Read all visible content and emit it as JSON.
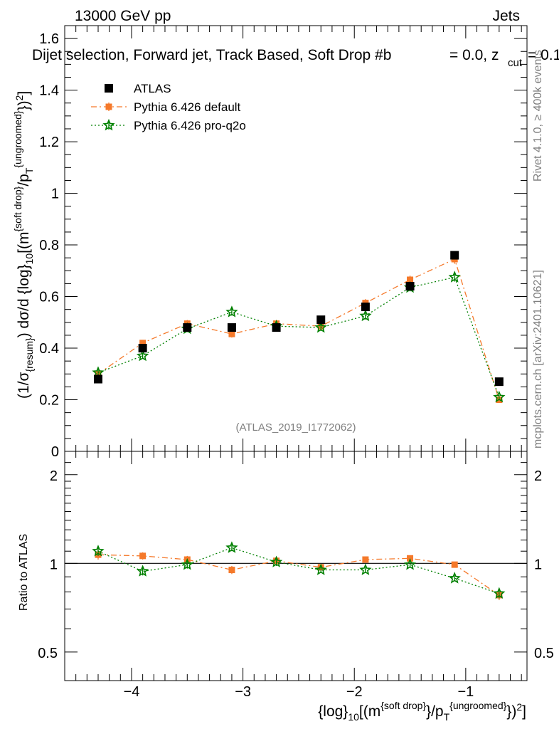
{
  "header": {
    "left": "13000 GeV pp",
    "right": "Jets",
    "title": "Dijet selection, Forward jet, Track Based, Soft Drop #b",
    "title_tail": "= 0.0, z",
    "title_cut": "cut",
    "title_end": "= 0.1"
  },
  "side_text": {
    "rivet": "Rivet 4.1.0, ≥ 400k events",
    "mcplots": "mcplots.cern.ch [arXiv:2401.10621]"
  },
  "watermark": "(ATLAS_2019_I1772062)",
  "legend": [
    {
      "label": "ATLAS",
      "color": "#000000",
      "marker": "square",
      "line": "none"
    },
    {
      "label": "Pythia 6.426 default",
      "color": "#f5792a",
      "marker": "square-small",
      "line": "dashdot"
    },
    {
      "label": "Pythia 6.426 pro-q2o",
      "color": "#008000",
      "marker": "star",
      "line": "dotted"
    }
  ],
  "axis_text": {
    "ylabel_main": "(1/σ{resum}) dσ/d {log}10[(m{soft drop}/pT{ungroomed})2]",
    "ylabel_ratio": "Ratio to ATLAS",
    "xlabel": "{log}10[(m{soft drop}/pT{ungroomed})2]",
    "main_yticks": [
      "0",
      "0.2",
      "0.4",
      "0.6",
      "0.8",
      "1",
      "1.2",
      "1.4",
      "1.6"
    ],
    "ratio_yticks": [
      "0.5",
      "1",
      "2"
    ],
    "xticks": [
      "−4",
      "−3",
      "−2",
      "−1"
    ]
  },
  "chart_data": {
    "type": "scatter",
    "title": "Dijet selection, Forward jet, Track Based, Soft Drop β = 0.0, z_cut = 0.1",
    "x": [
      -4.3,
      -3.9,
      -3.5,
      -3.1,
      -2.7,
      -2.3,
      -1.9,
      -1.5,
      -1.1,
      -0.7
    ],
    "xlim": [
      -4.6,
      -0.45
    ],
    "ylim": [
      0,
      1.65
    ],
    "ratio_ylim": [
      0.4,
      2.4
    ],
    "ratio_scale": "log",
    "series": [
      {
        "name": "ATLAS",
        "values": [
          0.28,
          0.4,
          0.48,
          0.48,
          0.48,
          0.51,
          0.56,
          0.64,
          0.76,
          0.27
        ],
        "errors": [
          0.005,
          0.005,
          0.005,
          0.005,
          0.005,
          0.005,
          0.005,
          0.005,
          0.005,
          0.005
        ],
        "ratio": [
          1,
          1,
          1,
          1,
          1,
          1,
          1,
          1,
          1,
          1
        ]
      },
      {
        "name": "Pythia 6.426 default",
        "values": [
          0.3,
          0.42,
          0.495,
          0.455,
          0.495,
          0.485,
          0.575,
          0.665,
          0.745,
          0.2
        ],
        "errors": [
          0.012,
          0.012,
          0.014,
          0.014,
          0.014,
          0.013,
          0.015,
          0.016,
          0.018,
          0.008
        ],
        "ratio": [
          1.07,
          1.06,
          1.03,
          0.95,
          1.02,
          0.97,
          1.03,
          1.04,
          0.99,
          0.78
        ],
        "ratio_errors": [
          0.04,
          0.03,
          0.03,
          0.03,
          0.03,
          0.02,
          0.02,
          0.02,
          0.02,
          0.03
        ]
      },
      {
        "name": "Pythia 6.426 pro-q2o",
        "values": [
          0.305,
          0.37,
          0.475,
          0.54,
          0.485,
          0.48,
          0.525,
          0.635,
          0.675,
          0.21
        ],
        "errors": [
          0.012,
          0.011,
          0.013,
          0.014,
          0.013,
          0.013,
          0.014,
          0.015,
          0.017,
          0.008
        ],
        "ratio": [
          1.1,
          0.94,
          0.99,
          1.13,
          1.01,
          0.95,
          0.95,
          0.99,
          0.89,
          0.79
        ],
        "ratio_errors": [
          0.04,
          0.03,
          0.03,
          0.03,
          0.03,
          0.02,
          0.02,
          0.02,
          0.02,
          0.03
        ]
      }
    ]
  }
}
